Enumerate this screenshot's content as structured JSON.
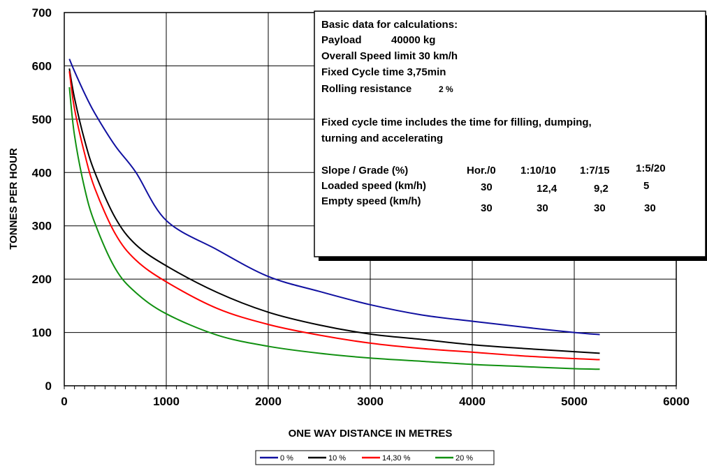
{
  "chart_data": {
    "type": "line",
    "xlabel": "ONE WAY DISTANCE IN METRES",
    "ylabel": "TONNES PER HOUR",
    "xlim": [
      0,
      6000
    ],
    "ylim": [
      0,
      700
    ],
    "x_ticks": [
      "0",
      "1000",
      "2000",
      "3000",
      "4000",
      "5000",
      "6000"
    ],
    "y_ticks": [
      "0",
      "100",
      "200",
      "300",
      "400",
      "500",
      "600",
      "700"
    ],
    "grid": true,
    "legend_position": "bottom",
    "x": [
      50,
      100,
      200,
      300,
      500,
      700,
      1000,
      1500,
      2000,
      2500,
      3000,
      3500,
      4000,
      4500,
      5000,
      5250
    ],
    "series": [
      {
        "name": "0 %",
        "color": "#1010a0",
        "values": [
          613,
          590,
          548,
          511,
          450,
          401,
          310,
          255,
          205,
          177,
          152,
          133,
          121,
          110,
          100,
          96
        ]
      },
      {
        "name": "10 %",
        "color": "#000000",
        "values": [
          595,
          540,
          460,
          400,
          315,
          265,
          225,
          175,
          138,
          114,
          97,
          87,
          77,
          70,
          64,
          61
        ]
      },
      {
        "name": "14,30 %",
        "color": "#ff0000",
        "values": [
          590,
          520,
          435,
          370,
          285,
          236,
          195,
          145,
          115,
          95,
          80,
          70,
          63,
          56,
          51,
          49
        ]
      },
      {
        "name": "20 %",
        "color": "#109010",
        "values": [
          560,
          470,
          370,
          305,
          220,
          175,
          135,
          95,
          74,
          61,
          52,
          46,
          40,
          36,
          32,
          31
        ]
      }
    ]
  },
  "info_box": {
    "line1": "Basic data for calculations:",
    "payload_label": "Payload",
    "payload_value": "40000  kg",
    "speed_limit": "Overall Speed limit  30  km/h",
    "cycle_time": "Fixed Cycle time  3,75min",
    "rolling_label": "Rolling resistance",
    "rolling_value": "2 %",
    "note_line1": "Fixed cycle time includes the time for filling, dumping,",
    "note_line2": "turning and accelerating",
    "table": {
      "row_labels": [
        "Slope / Grade (%)",
        "Loaded speed (km/h)",
        "Empty speed (km/h)"
      ],
      "grade_headers": [
        "Hor./0",
        "1:10/10",
        "1:7/15",
        "1:5/20"
      ],
      "loaded_speeds": [
        "30",
        "12,4",
        "9,2",
        "5"
      ],
      "empty_speeds": [
        "30",
        "30",
        "30",
        "30"
      ]
    }
  }
}
